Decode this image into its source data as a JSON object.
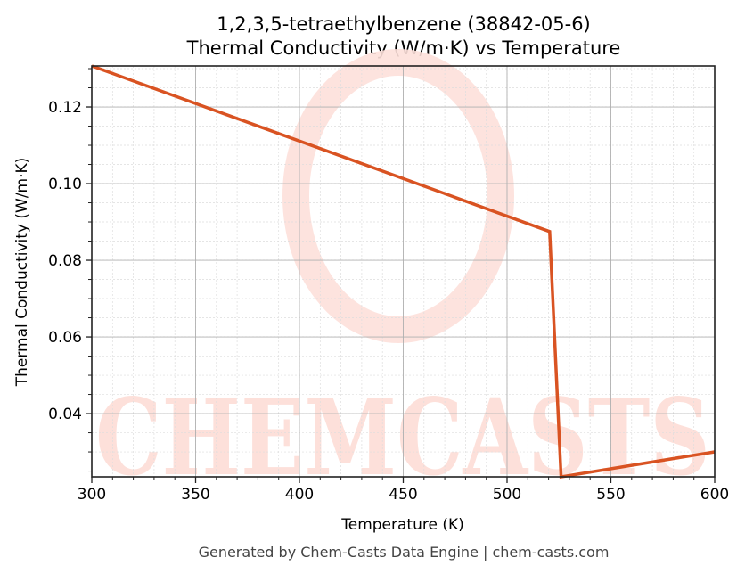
{
  "chart_data": {
    "type": "line",
    "title": "1,2,3,5-tetraethylbenzene (38842-05-6)",
    "subtitle": "Thermal Conductivity (W/m·K) vs Temperature",
    "xlabel": "Temperature (K)",
    "ylabel": "Thermal Conductivity (W/m·K)",
    "xlim": [
      300,
      600
    ],
    "ylim": [
      0.0235,
      0.1307
    ],
    "xticks": [
      300,
      350,
      400,
      450,
      500,
      550,
      600
    ],
    "xtick_labels": [
      "300",
      "350",
      "400",
      "450",
      "500",
      "550",
      "600"
    ],
    "yticks": [
      0.04,
      0.06,
      0.08,
      0.1,
      0.12
    ],
    "ytick_labels": [
      "0.04",
      "0.06",
      "0.08",
      "0.10",
      "0.12"
    ],
    "grid": true,
    "legend": null,
    "series": [
      {
        "name": "Thermal Conductivity",
        "color": "#d95322",
        "x": [
          300,
          520.5,
          526,
          600
        ],
        "y": [
          0.1307,
          0.0875,
          0.0235,
          0.03
        ]
      }
    ]
  },
  "watermark": {
    "text": "CHEMCASTS",
    "color": "#fde0da"
  },
  "footer": {
    "text": "Generated by Chem-Casts Data Engine | chem-casts.com"
  }
}
